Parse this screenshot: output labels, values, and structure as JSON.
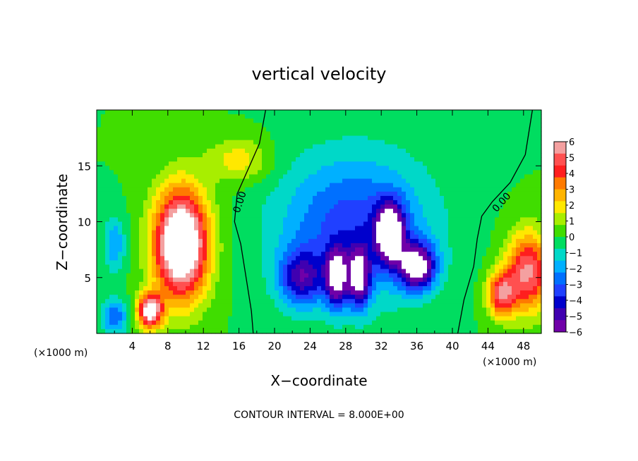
{
  "chart_data": {
    "type": "heatmap",
    "title": "vertical velocity",
    "xlabel": "X−coordinate",
    "ylabel": "Z−coordinate",
    "x_unit": "(×1000 m)",
    "xlim": [
      0,
      50
    ],
    "ylim": [
      0,
      20
    ],
    "x_ticks": [
      "4",
      "8",
      "12",
      "16",
      "20",
      "24",
      "28",
      "32",
      "36",
      "40",
      "44",
      "48"
    ],
    "y_ticks": [
      "5",
      "10",
      "15"
    ],
    "colorbar": {
      "range": [
        -6,
        6
      ],
      "labels": [
        "6",
        "5",
        "4",
        "3",
        "2",
        "1",
        "0",
        "−1",
        "−2",
        "−3",
        "−4",
        "−5",
        "−6"
      ],
      "colors": [
        "#f4a0a0",
        "#ff5050",
        "#ff1e1e",
        "#ff7a00",
        "#ffb400",
        "#ffe800",
        "#a8ee00",
        "#40dd00",
        "#00dd60",
        "#00d8c8",
        "#00b0ff",
        "#0070ff",
        "#2040ff",
        "#0000cc",
        "#4000b0",
        "#7000a8"
      ]
    },
    "contour_labels": [
      "0.00",
      "0.00"
    ],
    "annotation": "CONTOUR INTERVAL = 8.000E+00",
    "features": [
      {
        "kind": "updraft",
        "x": 9.5,
        "z": 8.0,
        "sx": 3.0,
        "sz": 4.8,
        "w": 9.0
      },
      {
        "kind": "updraft",
        "x": 16.0,
        "z": 15.5,
        "sx": 3.5,
        "sz": 2.0,
        "w": 2.0
      },
      {
        "kind": "updraft",
        "x": 6.0,
        "z": 2.0,
        "sx": 1.4,
        "sz": 1.5,
        "w": 7.0
      },
      {
        "kind": "updraft",
        "x": 48.5,
        "z": 5.5,
        "sx": 2.4,
        "sz": 3.5,
        "w": 5.5
      },
      {
        "kind": "updraft",
        "x": 45.5,
        "z": 3.5,
        "sx": 1.6,
        "sz": 2.0,
        "w": 5.0
      },
      {
        "kind": "downdraft",
        "x": 29.0,
        "z": 9.5,
        "sx": 8.5,
        "sz": 6.5,
        "w": -3.5
      },
      {
        "kind": "downdraft",
        "x": 23.0,
        "z": 5.0,
        "sx": 2.5,
        "sz": 2.5,
        "w": -4.0
      },
      {
        "kind": "downdraft",
        "x": 27.0,
        "z": 5.0,
        "sx": 1.2,
        "sz": 2.5,
        "w": -6.0
      },
      {
        "kind": "downdraft",
        "x": 29.5,
        "z": 5.0,
        "sx": 1.2,
        "sz": 2.5,
        "w": -6.0
      },
      {
        "kind": "downdraft",
        "x": 33.0,
        "z": 9.0,
        "sx": 1.5,
        "sz": 2.5,
        "w": -8.0
      },
      {
        "kind": "downdraft",
        "x": 36.0,
        "z": 6.0,
        "sx": 2.0,
        "sz": 2.0,
        "w": -7.0
      },
      {
        "kind": "downdraft",
        "x": 2.0,
        "z": 8.0,
        "sx": 1.2,
        "sz": 2.5,
        "w": -2.2
      },
      {
        "kind": "downdraft",
        "x": 2.0,
        "z": 1.5,
        "sx": 1.5,
        "sz": 1.5,
        "w": -3.0
      }
    ]
  }
}
